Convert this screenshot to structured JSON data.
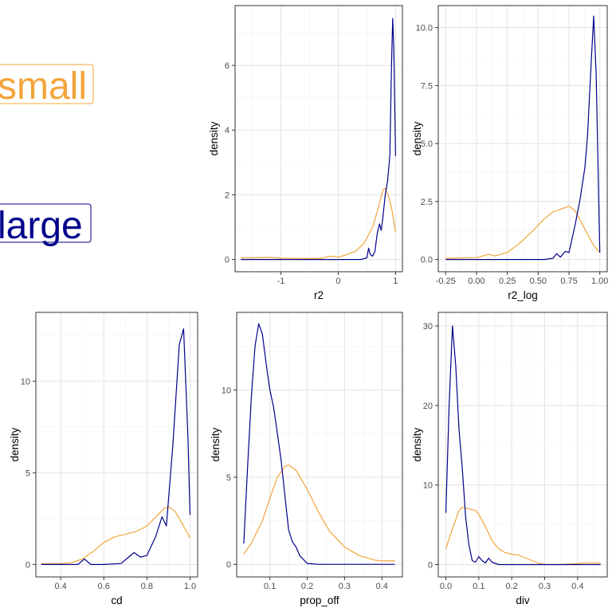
{
  "legend": {
    "small": {
      "label": "small",
      "color": "#F2A43A"
    },
    "large": {
      "label": "large",
      "color": "#00008B"
    }
  },
  "chart_data": [
    {
      "type": "line",
      "xlabel": "r2",
      "ylabel": "density",
      "xlim": [
        -1.8,
        1.12
      ],
      "ylim": [
        -0.38,
        7.85
      ],
      "xticks": [
        -1,
        0,
        1
      ],
      "yticks": [
        0,
        2,
        4,
        6
      ],
      "grid": true,
      "series": [
        {
          "name": "small",
          "color": "#F2A43A",
          "x": [
            -1.7,
            -1.5,
            -1.2,
            -1.0,
            -0.5,
            -0.3,
            -0.2,
            -0.1,
            0.0,
            0.1,
            0.3,
            0.45,
            0.6,
            0.7,
            0.78,
            0.82,
            0.88,
            0.93,
            0.97,
            1.0
          ],
          "y": [
            0.05,
            0.05,
            0.06,
            0.04,
            0.03,
            0.03,
            0.08,
            0.1,
            0.07,
            0.12,
            0.25,
            0.5,
            1.0,
            1.6,
            2.15,
            2.2,
            1.95,
            1.6,
            1.2,
            0.85
          ]
        },
        {
          "name": "large",
          "color": "#00008B",
          "x": [
            -1.7,
            0.4,
            0.5,
            0.53,
            0.56,
            0.6,
            0.64,
            0.68,
            0.72,
            0.75,
            0.78,
            0.82,
            0.86,
            0.9,
            0.93,
            0.95,
            0.97,
            1.0
          ],
          "y": [
            0.0,
            0.0,
            0.05,
            0.35,
            0.15,
            0.1,
            0.25,
            0.8,
            1.1,
            0.9,
            1.3,
            2.0,
            2.4,
            3.2,
            6.0,
            7.45,
            6.5,
            3.2
          ]
        }
      ]
    },
    {
      "type": "line",
      "xlabel": "r2_log",
      "ylabel": "density",
      "xlim": [
        -0.31,
        1.06
      ],
      "ylim": [
        -0.53,
        10.95
      ],
      "xticks": [
        -0.25,
        0.0,
        0.25,
        0.5,
        0.75,
        1.0
      ],
      "xtick_labels": [
        "-0.25",
        "0.00",
        "0.25",
        "0.50",
        "0.75",
        "1.00"
      ],
      "yticks": [
        0.0,
        2.5,
        5.0,
        7.5,
        10.0
      ],
      "ytick_labels": [
        "0.0",
        "2.5",
        "5.0",
        "7.5",
        "10.0"
      ],
      "grid": true,
      "series": [
        {
          "name": "small",
          "color": "#F2A43A",
          "x": [
            -0.25,
            0.0,
            0.05,
            0.1,
            0.15,
            0.25,
            0.35,
            0.45,
            0.55,
            0.62,
            0.7,
            0.75,
            0.8,
            0.85,
            0.9,
            0.95,
            1.0
          ],
          "y": [
            0.05,
            0.08,
            0.15,
            0.22,
            0.15,
            0.3,
            0.7,
            1.2,
            1.75,
            2.05,
            2.2,
            2.3,
            2.1,
            1.6,
            1.1,
            0.6,
            0.3
          ]
        },
        {
          "name": "large",
          "color": "#00008B",
          "x": [
            -0.25,
            0.55,
            0.62,
            0.65,
            0.68,
            0.72,
            0.75,
            0.8,
            0.84,
            0.88,
            0.9,
            0.93,
            0.95,
            0.97,
            1.0
          ],
          "y": [
            0.0,
            0.0,
            0.05,
            0.25,
            0.1,
            0.35,
            0.3,
            1.5,
            2.6,
            4.0,
            5.3,
            8.5,
            10.5,
            8.0,
            0.3
          ]
        }
      ]
    },
    {
      "type": "line",
      "xlabel": "cd",
      "ylabel": "density",
      "xlim": [
        0.285,
        1.035
      ],
      "ylim": [
        -0.68,
        13.75
      ],
      "xticks": [
        0.4,
        0.6,
        0.8,
        1.0
      ],
      "xtick_labels": [
        "0.4",
        "0.6",
        "0.8",
        "1.0"
      ],
      "yticks": [
        0,
        5,
        10
      ],
      "grid": true,
      "series": [
        {
          "name": "small",
          "color": "#F2A43A",
          "x": [
            0.31,
            0.4,
            0.45,
            0.5,
            0.55,
            0.6,
            0.65,
            0.7,
            0.75,
            0.8,
            0.85,
            0.88,
            0.9,
            0.93,
            0.96,
            1.0
          ],
          "y": [
            0.05,
            0.05,
            0.1,
            0.3,
            0.7,
            1.2,
            1.5,
            1.65,
            1.8,
            2.1,
            2.7,
            3.05,
            3.15,
            2.9,
            2.3,
            1.45
          ]
        },
        {
          "name": "large",
          "color": "#00008B",
          "x": [
            0.31,
            0.48,
            0.51,
            0.54,
            0.6,
            0.68,
            0.72,
            0.74,
            0.77,
            0.8,
            0.84,
            0.87,
            0.89,
            0.92,
            0.95,
            0.97,
            0.99,
            1.0
          ],
          "y": [
            0.0,
            0.0,
            0.3,
            0.0,
            0.0,
            0.05,
            0.45,
            0.65,
            0.4,
            0.5,
            1.5,
            2.6,
            2.1,
            6.5,
            12.0,
            12.85,
            7.0,
            2.7
          ]
        }
      ]
    },
    {
      "type": "line",
      "xlabel": "prop_off",
      "ylabel": "density",
      "xlim": [
        0.011,
        0.455
      ],
      "ylim": [
        -0.72,
        14.45
      ],
      "xticks": [
        0.1,
        0.2,
        0.3,
        0.4
      ],
      "xtick_labels": [
        "0.1",
        "0.2",
        "0.3",
        "0.4"
      ],
      "yticks": [
        0,
        5,
        10
      ],
      "grid": true,
      "series": [
        {
          "name": "small",
          "color": "#F2A43A",
          "x": [
            0.03,
            0.05,
            0.08,
            0.1,
            0.12,
            0.14,
            0.15,
            0.17,
            0.2,
            0.23,
            0.26,
            0.3,
            0.34,
            0.38,
            0.4,
            0.435
          ],
          "y": [
            0.6,
            1.2,
            2.5,
            3.8,
            5.0,
            5.6,
            5.7,
            5.4,
            4.3,
            3.0,
            1.9,
            1.0,
            0.5,
            0.25,
            0.2,
            0.2
          ]
        },
        {
          "name": "large",
          "color": "#00008B",
          "x": [
            0.03,
            0.04,
            0.05,
            0.06,
            0.07,
            0.08,
            0.09,
            0.1,
            0.11,
            0.12,
            0.13,
            0.14,
            0.15,
            0.16,
            0.17,
            0.18,
            0.2,
            0.23,
            0.3,
            0.435
          ],
          "y": [
            1.2,
            5.5,
            9.5,
            12.5,
            13.8,
            13.2,
            11.5,
            10.0,
            9.0,
            7.5,
            6.0,
            4.0,
            2.0,
            1.3,
            1.0,
            0.5,
            0.05,
            0.0,
            0.0,
            0.0
          ]
        }
      ]
    },
    {
      "type": "line",
      "xlabel": "div",
      "ylabel": "density",
      "xlim": [
        -0.023,
        0.49
      ],
      "ylim": [
        -1.55,
        31.7
      ],
      "xticks": [
        0.0,
        0.1,
        0.2,
        0.3,
        0.4
      ],
      "xtick_labels": [
        "0.0",
        "0.1",
        "0.2",
        "0.3",
        "0.4"
      ],
      "yticks": [
        0,
        10,
        20,
        30
      ],
      "grid": true,
      "series": [
        {
          "name": "small",
          "color": "#F2A43A",
          "x": [
            0.0,
            0.02,
            0.04,
            0.05,
            0.07,
            0.09,
            0.1,
            0.12,
            0.14,
            0.16,
            0.18,
            0.2,
            0.22,
            0.25,
            0.28,
            0.3,
            0.35,
            0.39,
            0.42,
            0.47
          ],
          "y": [
            2.0,
            4.5,
            6.8,
            7.2,
            7.0,
            6.8,
            6.3,
            4.8,
            3.0,
            2.0,
            1.5,
            1.3,
            1.2,
            0.7,
            0.2,
            0.0,
            0.0,
            0.1,
            0.2,
            0.2
          ]
        },
        {
          "name": "large",
          "color": "#00008B",
          "x": [
            0.0,
            0.01,
            0.02,
            0.03,
            0.04,
            0.05,
            0.06,
            0.07,
            0.08,
            0.09,
            0.1,
            0.11,
            0.12,
            0.13,
            0.14,
            0.16,
            0.2,
            0.47
          ],
          "y": [
            6.5,
            20.0,
            30.0,
            25.0,
            17.0,
            12.0,
            6.0,
            2.5,
            0.5,
            0.3,
            1.0,
            0.5,
            0.2,
            0.8,
            0.3,
            0.0,
            0.0,
            0.0
          ]
        }
      ]
    }
  ]
}
